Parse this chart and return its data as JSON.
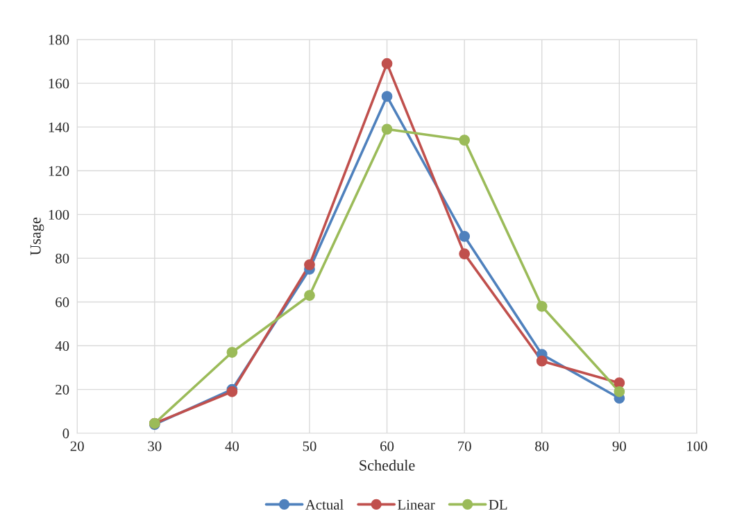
{
  "chart_data": {
    "type": "line",
    "xlabel": "Schedule",
    "ylabel": "Usage",
    "x": [
      30,
      40,
      50,
      60,
      70,
      80,
      90
    ],
    "series": [
      {
        "name": "Actual",
        "color": "#4f81bd",
        "values": [
          4,
          20,
          75,
          154,
          90,
          36,
          16
        ]
      },
      {
        "name": "Linear",
        "color": "#c0504d",
        "values": [
          4.5,
          19,
          77,
          169,
          82,
          33,
          23
        ]
      },
      {
        "name": "DL",
        "color": "#9bbb59",
        "values": [
          4.5,
          37,
          63,
          139,
          134,
          58,
          19
        ]
      }
    ],
    "xlim": [
      20,
      100
    ],
    "xticks": [
      20,
      30,
      40,
      50,
      60,
      70,
      80,
      90,
      100
    ],
    "ylim": [
      0,
      180
    ],
    "yticks": [
      0,
      20,
      40,
      60,
      80,
      100,
      120,
      140,
      160,
      180
    ],
    "grid": true,
    "legend": "bottom",
    "marker": "circle",
    "line_style": "solid"
  }
}
